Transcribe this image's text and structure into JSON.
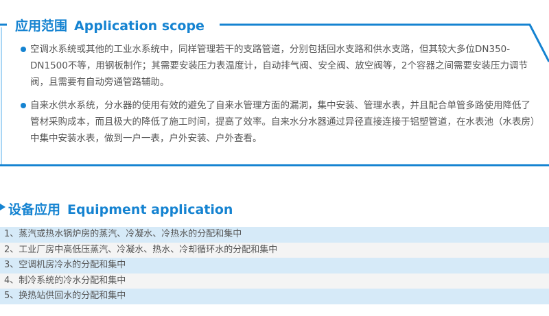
{
  "colors": {
    "accent": "#1583d1",
    "row_blue": "#d6eaf8",
    "row_gray": "#f4f4f4"
  },
  "scope": {
    "title_cn": "应用范围",
    "title_en": "Application scope",
    "items": [
      "空调水系统或其他的工业水系统中，同样管理若干的支路管道，分别包括回水支路和供水支路，但其较大多位DN350-DN1500不等，用钢板制作；其需要安装压力表温度计，自动排气阀、安全阀、放空阀等，2个容器之间需要安装压力调节阀，且需要有自动旁通管路辅助。",
      "自来水供水系统，分水器的使用有效的避免了自来水管理方面的漏洞，集中安装、管理水表，并且配合单管多路使用降低了管材采购成本，而且极大的降低了施工时间，提高了效率。自来水分水器通过异径直接连接于铝塑管道，在水表池（水表房）中集中安装水表，做到一户一表，户外安装、户外查看。"
    ]
  },
  "equipment": {
    "title_cn": "设备应用",
    "title_en": "Equipment application",
    "items": [
      "1、蒸汽或热水锅炉房的蒸汽、冷凝水、冷热水的分配和集中",
      "2、工业厂房中高低压蒸汽、冷凝水、热水、冷却循环水的分配和集中",
      "3、空调机房冷水的分配和集中",
      "4、制冷系统的冷水分配和集中",
      "5、换热站供回水的分配和集中"
    ]
  }
}
